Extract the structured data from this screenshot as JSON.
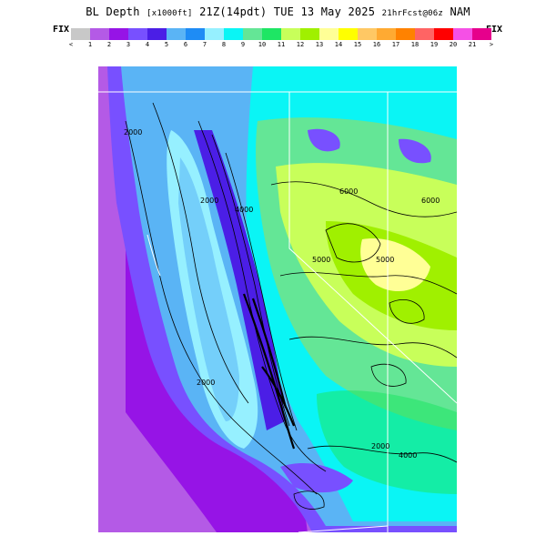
{
  "header": {
    "title_prefix": "BL Depth",
    "title_units": "[x1000ft]",
    "title_valid": "21Z(14pdt) TUE 13 May 2025",
    "title_run": "21hrFcst@06z",
    "title_model": "NAM"
  },
  "legend": {
    "left_label": "FIX",
    "right_label": "FIX",
    "colors": [
      "#c8c8c8",
      "#b45ae6",
      "#9614e6",
      "#7850ff",
      "#4b1ee6",
      "#5ab4f5",
      "#1e8cf5",
      "#96f0ff",
      "#0af5f5",
      "#64e696",
      "#1ee664",
      "#c8ff5a",
      "#a0f000",
      "#ffff96",
      "#ffff00",
      "#ffc864",
      "#ffaa32",
      "#ff8200",
      "#ff6464",
      "#ff0000",
      "#f550e6",
      "#e6008c"
    ],
    "tick_labels": [
      "<",
      "1",
      "2",
      "3",
      "4",
      "5",
      "6",
      "7",
      "8",
      "9",
      "10",
      "11",
      "12",
      "13",
      "14",
      "15",
      "16",
      "17",
      "18",
      "19",
      "20",
      "21",
      ">"
    ]
  },
  "map": {
    "contour_labels": [
      "2000",
      "2000",
      "2000",
      "2000",
      "4000",
      "4000",
      "5000",
      "5000",
      "6000",
      "6000"
    ]
  }
}
